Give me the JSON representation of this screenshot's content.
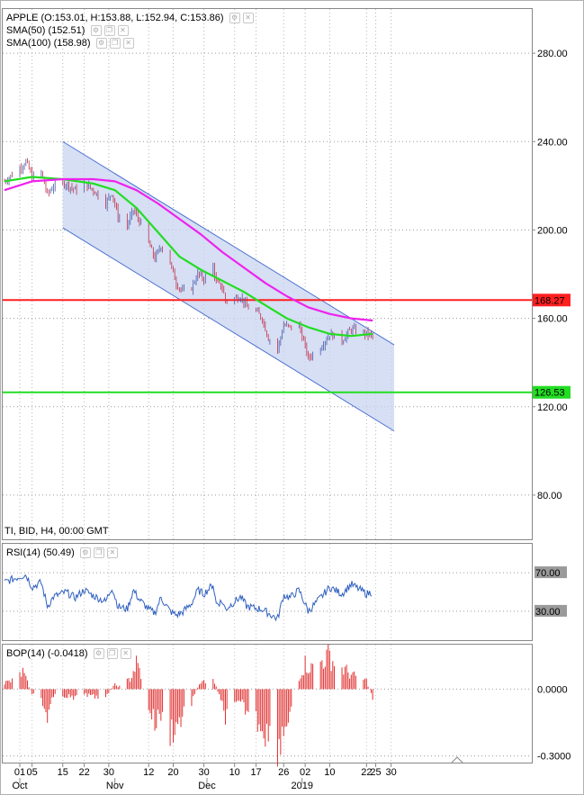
{
  "header": {
    "main_legend": "APPLE (O:153.01, H:153.88, L:152.94, C:153.86)",
    "sma50_legend": "SMA(50) (152.51)",
    "sma100_legend": "SMA(100) (158.98)",
    "footer_info": "TI, BID, H4, 00:00 GMT",
    "rsi_legend": "RSI(14) (50.49)",
    "bop_legend": "BOP(14) (-0.0418)"
  },
  "chart_data": [
    {
      "type": "candlestick",
      "panel": "price",
      "title": "APPLE",
      "ylim": [
        60,
        300
      ],
      "ticks": [
        "280.00",
        "240.00",
        "200.00",
        "160.00",
        "120.00",
        "80.00"
      ],
      "tick_values": [
        280,
        240,
        200,
        160,
        120,
        80
      ],
      "grid": true,
      "horizontal_lines": [
        {
          "label": "168.27",
          "value": 168.27,
          "color": "#ff2020"
        },
        {
          "label": "126.53",
          "value": 126.53,
          "color": "#22dd22"
        }
      ],
      "channel": {
        "upper_start": [
          "2018-10-15",
          240
        ],
        "upper_end": [
          "2019-01-31",
          148
        ],
        "lower_start": [
          "2018-10-15",
          201
        ],
        "lower_end": [
          "2019-01-31",
          109
        ],
        "color": "#c8d4f0"
      },
      "close_path": [
        [
          "2018-09-26",
          222
        ],
        [
          "2018-10-01",
          228
        ],
        [
          "2018-10-03",
          231
        ],
        [
          "2018-10-05",
          224
        ],
        [
          "2018-10-08",
          226
        ],
        [
          "2018-10-10",
          216
        ],
        [
          "2018-10-12",
          220
        ],
        [
          "2018-10-16",
          221
        ],
        [
          "2018-10-19",
          218
        ],
        [
          "2018-10-22",
          221
        ],
        [
          "2018-10-25",
          218
        ],
        [
          "2018-10-29",
          212
        ],
        [
          "2018-10-31",
          217
        ],
        [
          "2018-11-02",
          206
        ],
        [
          "2018-11-05",
          202
        ],
        [
          "2018-11-07",
          209
        ],
        [
          "2018-11-09",
          204
        ],
        [
          "2018-11-12",
          194
        ],
        [
          "2018-11-14",
          187
        ],
        [
          "2018-11-16",
          193
        ],
        [
          "2018-11-19",
          185
        ],
        [
          "2018-11-21",
          176
        ],
        [
          "2018-11-23",
          172
        ],
        [
          "2018-11-26",
          174
        ],
        [
          "2018-11-28",
          180
        ],
        [
          "2018-11-30",
          178
        ],
        [
          "2018-12-03",
          184
        ],
        [
          "2018-12-04",
          176
        ],
        [
          "2018-12-06",
          174
        ],
        [
          "2018-12-07",
          168
        ],
        [
          "2018-12-10",
          169
        ],
        [
          "2018-12-12",
          170
        ],
        [
          "2018-12-14",
          165
        ],
        [
          "2018-12-17",
          163
        ],
        [
          "2018-12-19",
          160
        ],
        [
          "2018-12-21",
          151
        ],
        [
          "2018-12-24",
          146
        ],
        [
          "2018-12-26",
          157
        ],
        [
          "2018-12-28",
          156
        ],
        [
          "2018-12-31",
          157
        ],
        [
          "2019-01-03",
          142
        ],
        [
          "2019-01-07",
          147
        ],
        [
          "2019-01-10",
          153
        ],
        [
          "2019-01-14",
          150
        ],
        [
          "2019-01-17",
          155
        ],
        [
          "2019-01-22",
          153
        ],
        [
          "2019-01-24",
          152
        ]
      ],
      "series": [
        {
          "name": "SMA(50)",
          "color": "#22dd22",
          "values": [
            [
              "2018-09-26",
              222
            ],
            [
              "2018-10-05",
              224
            ],
            [
              "2018-10-15",
              223
            ],
            [
              "2018-10-25",
              221
            ],
            [
              "2018-11-01",
              218
            ],
            [
              "2018-11-08",
              210
            ],
            [
              "2018-11-15",
              199
            ],
            [
              "2018-11-22",
              188
            ],
            [
              "2018-11-29",
              182
            ],
            [
              "2018-12-06",
              177
            ],
            [
              "2018-12-13",
              172
            ],
            [
              "2018-12-20",
              166
            ],
            [
              "2018-12-27",
              160
            ],
            [
              "2019-01-03",
              156
            ],
            [
              "2019-01-10",
              153
            ],
            [
              "2019-01-17",
              152
            ],
            [
              "2019-01-24",
              153
            ]
          ]
        },
        {
          "name": "SMA(100)",
          "color": "#ee22ee",
          "values": [
            [
              "2018-09-26",
              218
            ],
            [
              "2018-10-05",
              222
            ],
            [
              "2018-10-15",
              223
            ],
            [
              "2018-10-25",
              223
            ],
            [
              "2018-11-01",
              222
            ],
            [
              "2018-11-08",
              218
            ],
            [
              "2018-11-15",
              212
            ],
            [
              "2018-11-22",
              205
            ],
            [
              "2018-11-29",
              198
            ],
            [
              "2018-12-06",
              190
            ],
            [
              "2018-12-13",
              183
            ],
            [
              "2018-12-20",
              176
            ],
            [
              "2018-12-27",
              170
            ],
            [
              "2019-01-03",
              165
            ],
            [
              "2019-01-10",
              162
            ],
            [
              "2019-01-17",
              160
            ],
            [
              "2019-01-24",
              159
            ]
          ]
        }
      ]
    },
    {
      "type": "line",
      "panel": "rsi",
      "name": "RSI(14)",
      "ylim": [
        0,
        100
      ],
      "levels": [
        {
          "label": "70.00",
          "value": 70
        },
        {
          "label": "30.00",
          "value": 30
        }
      ],
      "color": "#3060c0",
      "values": [
        [
          "2018-09-26",
          60
        ],
        [
          "2018-10-01",
          66
        ],
        [
          "2018-10-03",
          68
        ],
        [
          "2018-10-05",
          55
        ],
        [
          "2018-10-08",
          60
        ],
        [
          "2018-10-10",
          35
        ],
        [
          "2018-10-12",
          45
        ],
        [
          "2018-10-16",
          50
        ],
        [
          "2018-10-19",
          44
        ],
        [
          "2018-10-22",
          52
        ],
        [
          "2018-10-25",
          46
        ],
        [
          "2018-10-29",
          40
        ],
        [
          "2018-10-31",
          55
        ],
        [
          "2018-11-02",
          35
        ],
        [
          "2018-11-05",
          32
        ],
        [
          "2018-11-07",
          52
        ],
        [
          "2018-11-09",
          42
        ],
        [
          "2018-11-12",
          32
        ],
        [
          "2018-11-14",
          28
        ],
        [
          "2018-11-16",
          44
        ],
        [
          "2018-11-19",
          30
        ],
        [
          "2018-11-21",
          26
        ],
        [
          "2018-11-23",
          29
        ],
        [
          "2018-11-26",
          38
        ],
        [
          "2018-11-28",
          52
        ],
        [
          "2018-11-30",
          48
        ],
        [
          "2018-12-03",
          58
        ],
        [
          "2018-12-04",
          38
        ],
        [
          "2018-12-06",
          40
        ],
        [
          "2018-12-07",
          32
        ],
        [
          "2018-12-10",
          40
        ],
        [
          "2018-12-12",
          45
        ],
        [
          "2018-12-14",
          35
        ],
        [
          "2018-12-17",
          33
        ],
        [
          "2018-12-19",
          32
        ],
        [
          "2018-12-21",
          28
        ],
        [
          "2018-12-24",
          22
        ],
        [
          "2018-12-26",
          47
        ],
        [
          "2018-12-28",
          44
        ],
        [
          "2018-12-31",
          52
        ],
        [
          "2019-01-03",
          30
        ],
        [
          "2019-01-07",
          44
        ],
        [
          "2019-01-10",
          55
        ],
        [
          "2019-01-14",
          48
        ],
        [
          "2019-01-17",
          58
        ],
        [
          "2019-01-22",
          48
        ],
        [
          "2019-01-24",
          50
        ]
      ]
    },
    {
      "type": "bar",
      "panel": "bop",
      "name": "BOP(14)",
      "ylim": [
        -0.33,
        0.2
      ],
      "ticks": [
        "0.0000",
        "-0.3000"
      ],
      "tick_values": [
        0,
        -0.3
      ],
      "color": "#e03030",
      "values": [
        [
          "2018-09-26",
          0.03
        ],
        [
          "2018-09-29",
          0.04
        ],
        [
          "2018-10-02",
          0.08
        ],
        [
          "2018-10-05",
          -0.02
        ],
        [
          "2018-10-08",
          -0.06
        ],
        [
          "2018-10-10",
          -0.12
        ],
        [
          "2018-10-12",
          -0.04
        ],
        [
          "2018-10-16",
          -0.03
        ],
        [
          "2018-10-19",
          -0.05
        ],
        [
          "2018-10-22",
          -0.02
        ],
        [
          "2018-10-25",
          -0.04
        ],
        [
          "2018-10-29",
          -0.03
        ],
        [
          "2018-11-01",
          0.02
        ],
        [
          "2018-11-03",
          0.01
        ],
        [
          "2018-11-06",
          0.05
        ],
        [
          "2018-11-08",
          0.12
        ],
        [
          "2018-11-09",
          0.09
        ],
        [
          "2018-11-12",
          -0.08
        ],
        [
          "2018-11-14",
          -0.16
        ],
        [
          "2018-11-16",
          -0.12
        ],
        [
          "2018-11-19",
          -0.2
        ],
        [
          "2018-11-21",
          -0.17
        ],
        [
          "2018-11-23",
          -0.13
        ],
        [
          "2018-11-26",
          -0.06
        ],
        [
          "2018-11-28",
          0.01
        ],
        [
          "2018-11-30",
          0.04
        ],
        [
          "2018-12-03",
          0.06
        ],
        [
          "2018-12-05",
          -0.04
        ],
        [
          "2018-12-07",
          -0.12
        ],
        [
          "2018-12-10",
          -0.09
        ],
        [
          "2018-12-12",
          -0.07
        ],
        [
          "2018-12-14",
          -0.1
        ],
        [
          "2018-12-17",
          -0.14
        ],
        [
          "2018-12-19",
          -0.17
        ],
        [
          "2018-12-21",
          -0.22
        ],
        [
          "2018-12-24",
          -0.26
        ],
        [
          "2018-12-26",
          -0.19
        ],
        [
          "2018-12-28",
          -0.11
        ],
        [
          "2018-12-31",
          0.06
        ],
        [
          "2019-01-02",
          0.12
        ],
        [
          "2019-01-04",
          0.1
        ],
        [
          "2019-01-07",
          0.13
        ],
        [
          "2019-01-10",
          0.16
        ],
        [
          "2019-01-12",
          0.11
        ],
        [
          "2019-01-15",
          0.09
        ],
        [
          "2019-01-18",
          0.06
        ],
        [
          "2019-01-22",
          0.04
        ],
        [
          "2019-01-24",
          -0.04
        ]
      ]
    }
  ],
  "x_axis": {
    "date_ticks": [
      {
        "label": "01",
        "date": "2018-10-01"
      },
      {
        "label": "05",
        "date": "2018-10-05"
      },
      {
        "label": "15",
        "date": "2018-10-15"
      },
      {
        "label": "22",
        "date": "2018-10-22"
      },
      {
        "label": "30",
        "date": "2018-10-30"
      },
      {
        "label": "12",
        "date": "2018-11-12"
      },
      {
        "label": "20",
        "date": "2018-11-20"
      },
      {
        "label": "30",
        "date": "2018-11-30"
      },
      {
        "label": "10",
        "date": "2018-12-10"
      },
      {
        "label": "17",
        "date": "2018-12-17"
      },
      {
        "label": "26",
        "date": "2018-12-26"
      },
      {
        "label": "02",
        "date": "2019-01-02"
      },
      {
        "label": "10",
        "date": "2019-01-10"
      },
      {
        "label": "22",
        "date": "2019-01-22"
      },
      {
        "label": "25",
        "date": "2019-01-25"
      },
      {
        "label": "30",
        "date": "2019-01-30"
      }
    ],
    "months": [
      {
        "label": "Oct",
        "date": "2018-10-01"
      },
      {
        "label": "Nov",
        "date": "2018-11-01"
      },
      {
        "label": "Dec",
        "date": "2018-12-01"
      },
      {
        "label": "2019",
        "date": "2019-01-01"
      }
    ]
  }
}
